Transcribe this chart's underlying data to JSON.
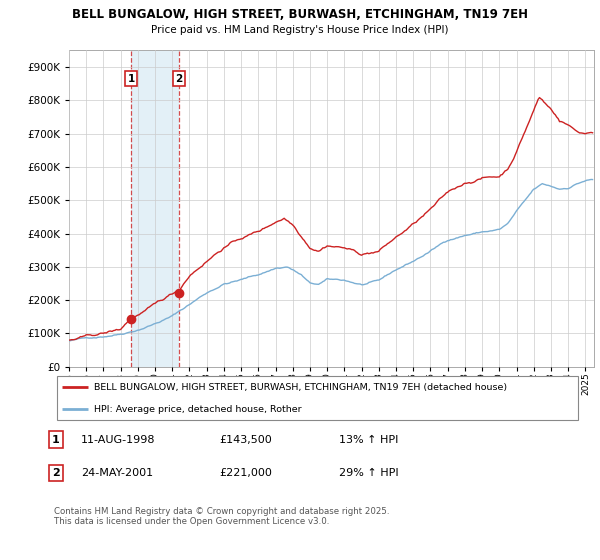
{
  "title1": "BELL BUNGALOW, HIGH STREET, BURWASH, ETCHINGHAM, TN19 7EH",
  "title2": "Price paid vs. HM Land Registry's House Price Index (HPI)",
  "bg_color": "#ffffff",
  "plot_bg_color": "#ffffff",
  "grid_color": "#cccccc",
  "hpi_color": "#7bafd4",
  "price_color": "#cc2222",
  "annotation_box_color": "#cc2222",
  "shade_color": "#d8eaf5",
  "ylim": [
    0,
    950000
  ],
  "yticks": [
    0,
    100000,
    200000,
    300000,
    400000,
    500000,
    600000,
    700000,
    800000,
    900000
  ],
  "legend_label1": "BELL BUNGALOW, HIGH STREET, BURWASH, ETCHINGHAM, TN19 7EH (detached house)",
  "legend_label2": "HPI: Average price, detached house, Rother",
  "sale1_date": "11-AUG-1998",
  "sale1_price": "£143,500",
  "sale1_hpi": "13% ↑ HPI",
  "sale1_year": 1998.6,
  "sale1_value": 143500,
  "sale2_date": "24-MAY-2001",
  "sale2_price": "£221,000",
  "sale2_hpi": "29% ↑ HPI",
  "sale2_year": 2001.38,
  "sale2_value": 221000,
  "footer": "Contains HM Land Registry data © Crown copyright and database right 2025.\nThis data is licensed under the Open Government Licence v3.0.",
  "xmin": 1995.0,
  "xmax": 2025.5
}
